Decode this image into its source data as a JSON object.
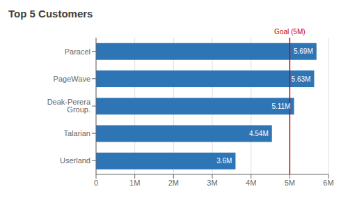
{
  "chart_data": {
    "type": "bar",
    "orientation": "horizontal",
    "title": "Top 5 Customers",
    "categories": [
      "Userland",
      "Talarian",
      "Deak-Perera Group.",
      "PageWave",
      "Paracel"
    ],
    "values": [
      3.6,
      4.54,
      5.11,
      5.63,
      5.69
    ],
    "value_labels": [
      "3.6M",
      "4.54M",
      "5.11M",
      "5.63M",
      "5.69M"
    ],
    "data_labels": true,
    "color": "#2E75B6",
    "xlim": [
      0,
      6.0
    ],
    "xticks": [
      0,
      {
        "value": 1,
        "label": "1M"
      },
      {
        "value": 2,
        "label": "2M"
      },
      {
        "value": 3,
        "label": "3M"
      },
      {
        "value": 4,
        "label": "4M"
      },
      {
        "value": 5,
        "label": "5M"
      },
      {
        "value": 6,
        "label": "6M"
      }
    ],
    "grid": true,
    "reference_lines": [
      {
        "value": 5.0,
        "label": "Goal (5M)",
        "color": "#CC0000"
      }
    ]
  }
}
